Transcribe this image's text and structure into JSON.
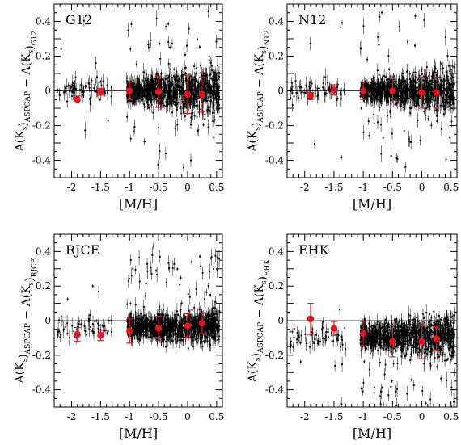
{
  "chart_data": [
    {
      "type": "scatter",
      "label": "G12",
      "xlabel": "[M/H]",
      "ylabel_main": "A(K",
      "ylabel_sub1": "s",
      "ylabel_mid": ")",
      "ylabel_sub2": "ASPCAP",
      "ylabel_minus": " − A(K",
      "ylabel_sub3": "s",
      "ylabel_end": ")",
      "ylabel_sub4": "G12",
      "xlim": [
        -2.3,
        0.6
      ],
      "ylim": [
        -0.5,
        0.5
      ],
      "xticks": [
        "-2",
        "-1.5",
        "-1",
        "-0.5",
        "0",
        "0.5"
      ],
      "yticks": [
        "-0.4",
        "-0.2",
        "0",
        "0.2",
        "0.4"
      ],
      "background": {
        "spread_low": 0.06,
        "spread_high": 0.16,
        "outlier_dir": "both"
      },
      "binned": {
        "x": [
          -1.9,
          -1.5,
          -1.0,
          -0.5,
          0.0,
          0.25
        ],
        "y": [
          -0.05,
          -0.005,
          0.0,
          -0.005,
          -0.02,
          -0.02
        ],
        "yerr": [
          0.02,
          0.02,
          0.05,
          0.09,
          0.11,
          0.1
        ]
      }
    },
    {
      "type": "scatter",
      "label": "N12",
      "xlabel": "[M/H]",
      "ylabel_main": "A(K",
      "ylabel_sub1": "s",
      "ylabel_mid": ")",
      "ylabel_sub2": "ASPCAP",
      "ylabel_minus": " − A(K",
      "ylabel_sub3": "s",
      "ylabel_end": ")",
      "ylabel_sub4": "N12",
      "xlim": [
        -2.3,
        0.6
      ],
      "ylim": [
        -0.5,
        0.5
      ],
      "xticks": [
        "-2",
        "-1.5",
        "-1",
        "-0.5",
        "0",
        "0.5"
      ],
      "yticks": [
        "-0.4",
        "-0.2",
        "0",
        "0.2",
        "0.4"
      ],
      "background": {
        "spread_low": 0.06,
        "spread_high": 0.14,
        "outlier_dir": "both"
      },
      "binned": {
        "x": [
          -1.9,
          -1.5,
          -1.0,
          -0.5,
          0.0,
          0.25
        ],
        "y": [
          -0.03,
          0.005,
          0.0,
          0.0,
          -0.01,
          -0.01
        ],
        "yerr": [
          0.02,
          0.03,
          0.05,
          0.07,
          0.09,
          0.09
        ]
      }
    },
    {
      "type": "scatter",
      "label": "RJCE",
      "xlabel": "[M/H]",
      "ylabel_main": "A(K",
      "ylabel_sub1": "s",
      "ylabel_mid": ")",
      "ylabel_sub2": "ASPCAP",
      "ylabel_minus": " − A(K",
      "ylabel_sub3": "s",
      "ylabel_end": ")",
      "ylabel_sub4": "RJCE",
      "xlim": [
        -2.3,
        0.6
      ],
      "ylim": [
        -0.5,
        0.5
      ],
      "xticks": [
        "-2",
        "-1.5",
        "-1",
        "-0.5",
        "0",
        "0.5"
      ],
      "yticks": [
        "-0.4",
        "-0.2",
        "0",
        "0.2",
        "0.4"
      ],
      "background": {
        "center": -0.04,
        "spread_low": 0.07,
        "spread_high": 0.1,
        "outlier_dir": "up"
      },
      "binned": {
        "x": [
          -1.9,
          -1.5,
          -1.0,
          -0.5,
          0.0,
          0.25
        ],
        "y": [
          -0.08,
          -0.085,
          -0.06,
          -0.045,
          -0.03,
          -0.015
        ],
        "yerr": [
          0.04,
          0.03,
          0.07,
          0.07,
          0.07,
          0.06
        ]
      }
    },
    {
      "type": "scatter",
      "label": "EHK",
      "xlabel": "[M/H]",
      "ylabel_main": "A(K",
      "ylabel_sub1": "s",
      "ylabel_mid": ")",
      "ylabel_sub2": "ASPCAP",
      "ylabel_minus": " − A(K",
      "ylabel_sub3": "s",
      "ylabel_end": ")",
      "ylabel_sub4": "EHK",
      "xlim": [
        -2.3,
        0.6
      ],
      "ylim": [
        -0.5,
        0.5
      ],
      "xticks": [
        "-2",
        "-1.5",
        "-1",
        "-0.5",
        "0",
        "0.5"
      ],
      "yticks": [
        "-0.4",
        "-0.2",
        "0",
        "0.2",
        "0.4"
      ],
      "background": {
        "center": -0.09,
        "spread_low": 0.08,
        "spread_high": 0.14,
        "outlier_dir": "down"
      },
      "binned": {
        "x": [
          -1.9,
          -1.5,
          -1.0,
          -0.5,
          0.0,
          0.25
        ],
        "y": [
          0.01,
          -0.045,
          -0.075,
          -0.12,
          -0.12,
          -0.105
        ],
        "yerr": [
          0.09,
          0.04,
          0.07,
          0.09,
          0.1,
          0.07
        ]
      }
    }
  ]
}
